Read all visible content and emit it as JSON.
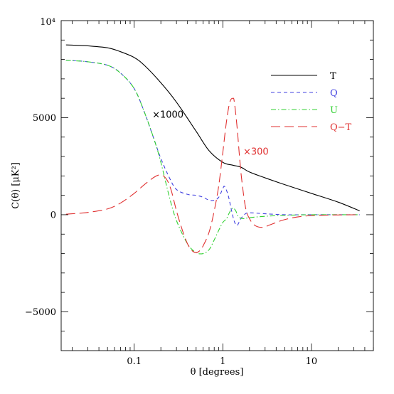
{
  "chart_data": {
    "type": "line",
    "xlabel": "θ [degrees]",
    "ylabel": "C(θ) [μK²]",
    "xscale": "log",
    "xlim": [
      0.015,
      50
    ],
    "ylim": [
      -7000,
      10000
    ],
    "ymax_label": "10⁴",
    "x_ticks": [
      {
        "value": 0.1,
        "label": "0.1"
      },
      {
        "value": 1,
        "label": "1"
      },
      {
        "value": 10,
        "label": "10"
      }
    ],
    "y_ticks": [
      {
        "value": -5000,
        "label": "−5000"
      },
      {
        "value": 0,
        "label": "0"
      },
      {
        "value": 5000,
        "label": "5000"
      }
    ],
    "grid": false,
    "legend_position": "top-right",
    "series": [
      {
        "name": "T",
        "color": "#000000",
        "dash": "solid",
        "x": [
          0.017,
          0.02,
          0.03,
          0.05,
          0.07,
          0.1,
          0.13,
          0.2,
          0.3,
          0.5,
          0.7,
          1.0,
          1.3,
          1.6,
          2,
          3,
          5,
          10,
          20,
          35
        ],
        "y": [
          8750,
          8740,
          8700,
          8600,
          8400,
          8100,
          7700,
          6800,
          5800,
          4300,
          3300,
          2700,
          2550,
          2450,
          2200,
          1900,
          1550,
          1100,
          650,
          200
        ]
      },
      {
        "name": "Q",
        "color": "#4040e0",
        "dash": "5,4",
        "x": [
          0.017,
          0.02,
          0.03,
          0.05,
          0.07,
          0.1,
          0.13,
          0.17,
          0.2,
          0.25,
          0.3,
          0.4,
          0.5,
          0.6,
          0.7,
          0.8,
          0.9,
          1.0,
          1.05,
          1.15,
          1.25,
          1.35,
          1.45,
          1.6,
          1.8,
          2.0,
          3,
          5,
          10,
          35
        ],
        "y": [
          7950,
          7940,
          7880,
          7700,
          7300,
          6500,
          5300,
          3800,
          2900,
          1900,
          1300,
          1050,
          1000,
          900,
          750,
          750,
          900,
          1350,
          1450,
          1000,
          250,
          -350,
          -550,
          -200,
          50,
          100,
          50,
          0,
          0,
          0
        ]
      },
      {
        "name": "U",
        "color": "#30d030",
        "dash": "7,3,1.5,3",
        "x": [
          0.017,
          0.02,
          0.03,
          0.05,
          0.07,
          0.1,
          0.13,
          0.17,
          0.2,
          0.25,
          0.3,
          0.4,
          0.5,
          0.6,
          0.7,
          0.8,
          0.9,
          1.0,
          1.1,
          1.2,
          1.3,
          1.4,
          1.5,
          1.7,
          2,
          3,
          5,
          10,
          35
        ],
        "y": [
          7950,
          7940,
          7880,
          7700,
          7300,
          6500,
          5300,
          3800,
          2700,
          900,
          -300,
          -1500,
          -1950,
          -2000,
          -1800,
          -1300,
          -800,
          -400,
          -200,
          150,
          350,
          200,
          -100,
          -200,
          -150,
          -80,
          -30,
          0,
          0
        ]
      },
      {
        "name": "Q−T",
        "color": "#e03030",
        "dash": "13,6",
        "x": [
          0.017,
          0.02,
          0.03,
          0.05,
          0.07,
          0.1,
          0.13,
          0.17,
          0.2,
          0.23,
          0.26,
          0.3,
          0.35,
          0.4,
          0.45,
          0.5,
          0.55,
          0.6,
          0.7,
          0.8,
          0.9,
          1.0,
          1.1,
          1.2,
          1.3,
          1.35,
          1.45,
          1.6,
          1.8,
          2.0,
          2.3,
          2.8,
          3.5,
          5,
          8,
          15,
          35
        ],
        "y": [
          30,
          50,
          120,
          300,
          600,
          1100,
          1550,
          1950,
          2050,
          1850,
          1300,
          200,
          -800,
          -1500,
          -1850,
          -1950,
          -1850,
          -1600,
          -900,
          200,
          1500,
          3200,
          4800,
          5800,
          6000,
          5800,
          4500,
          2200,
          400,
          -200,
          -550,
          -650,
          -500,
          -250,
          -80,
          -20,
          0
        ]
      }
    ],
    "annotations": [
      {
        "text": "×1000",
        "color": "#000000",
        "x": 0.16,
        "y": 5000
      },
      {
        "text": "×300",
        "color": "#e03030",
        "x": 1.7,
        "y": 3100
      }
    ]
  }
}
